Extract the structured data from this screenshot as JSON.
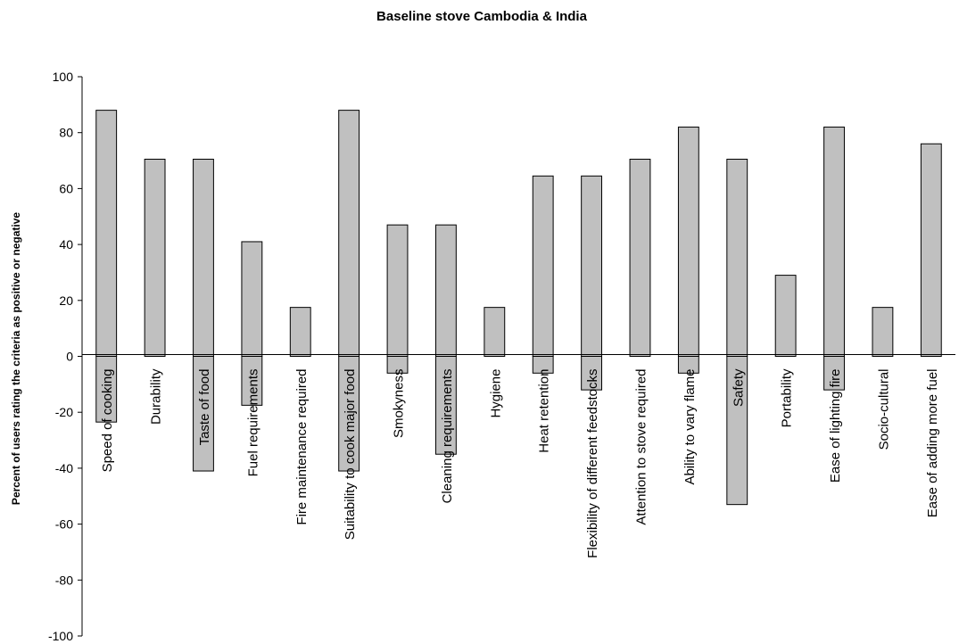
{
  "chart_data": {
    "type": "bar",
    "title": "Baseline stove Cambodia & India",
    "xlabel": "",
    "ylabel": "Percent of users rating the criteria as positive or negative",
    "ylim": [
      -100,
      100
    ],
    "yticks": [
      100,
      80,
      60,
      40,
      20,
      0,
      -20,
      -40,
      -60,
      -80,
      -100
    ],
    "grid": false,
    "bar_color": "#c0c0c0",
    "categories": [
      "Speed of cooking",
      "Durability",
      "Taste of food",
      "Fuel requirements",
      "Fire maintenance required",
      "Suitability to cook major food",
      "Smokyness",
      "Cleaning requirements",
      "Hygiene",
      "Heat retention",
      "Flexibility of different feedstocks",
      "Attention to stove required",
      "Ability to vary flame",
      "Safety",
      "Portability",
      "Ease of lighting fire",
      "Socio-cultural",
      "Ease of adding more fuel"
    ],
    "series": [
      {
        "values": [
          88,
          70.5,
          70.5,
          41,
          17.5,
          88,
          47,
          47,
          17.5,
          64.5,
          64.5,
          70.5,
          82,
          70.5,
          29,
          82,
          17.5,
          76
        ]
      },
      {
        "values": [
          -23.5,
          0,
          -41,
          -17.5,
          0,
          -41,
          -6,
          -35,
          0,
          -6,
          -12,
          0,
          -6,
          -53,
          0,
          -12,
          0,
          0
        ]
      }
    ]
  }
}
